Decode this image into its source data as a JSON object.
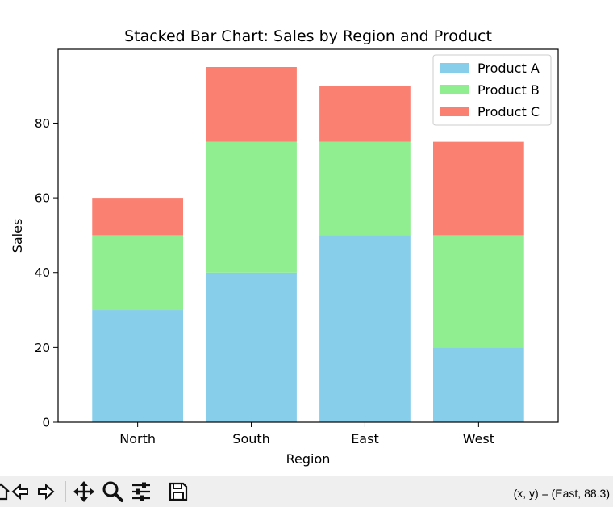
{
  "chart_data": {
    "type": "bar",
    "stacked": true,
    "title": "Stacked Bar Chart: Sales by Region and Product",
    "xlabel": "Region",
    "ylabel": "Sales",
    "categories": [
      "North",
      "South",
      "East",
      "West"
    ],
    "series": [
      {
        "name": "Product A",
        "color": "#87ceeb",
        "values": [
          30,
          40,
          50,
          20
        ]
      },
      {
        "name": "Product B",
        "color": "#90ee90",
        "values": [
          20,
          35,
          25,
          30
        ]
      },
      {
        "name": "Product C",
        "color": "#fa8072",
        "values": [
          10,
          20,
          15,
          25
        ]
      }
    ],
    "ylim": [
      0,
      99.75
    ],
    "yticks": [
      0,
      20,
      40,
      60,
      80
    ],
    "grid": false,
    "legend_position": "top-right"
  },
  "toolbar": {
    "icons": [
      "home-icon",
      "back-icon",
      "forward-icon",
      "pan-icon",
      "zoom-icon",
      "configure-subplots-icon",
      "save-icon"
    ],
    "coords_text": "(x, y) = (East, 88.3)"
  }
}
